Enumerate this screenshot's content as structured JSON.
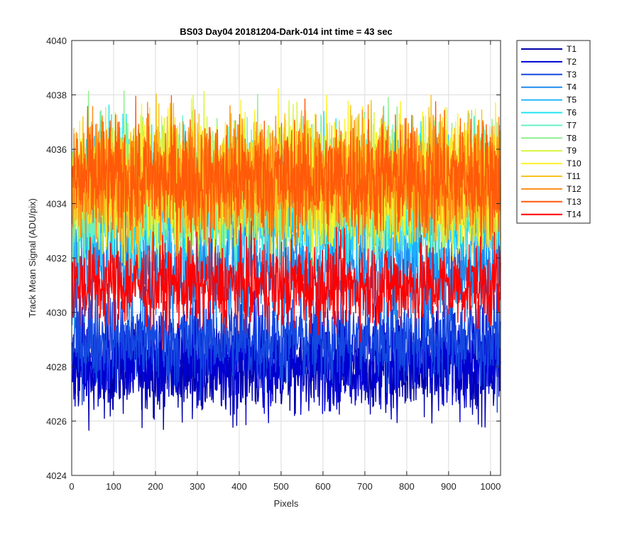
{
  "chart_data": {
    "type": "line",
    "title": "BS03 Day04 20181204-Dark-014 int time = 43 sec",
    "xlabel": "Pixels",
    "ylabel": "Track Mean Signal (ADU/pix)",
    "xlim": [
      0,
      1024
    ],
    "ylim": [
      4024,
      4040
    ],
    "xticks": [
      0,
      100,
      200,
      300,
      400,
      500,
      600,
      700,
      800,
      900,
      1000
    ],
    "yticks": [
      4024,
      4026,
      4028,
      4030,
      4032,
      4034,
      4036,
      4038,
      4040
    ],
    "grid": true,
    "legend_position": "outside-top-right",
    "x_points": 1024,
    "series": [
      {
        "name": "T1",
        "color": "#0000AA",
        "mean": 4028.0,
        "noise": 0.9
      },
      {
        "name": "T2",
        "color": "#0000D4",
        "mean": 4028.2,
        "noise": 0.9
      },
      {
        "name": "T3",
        "color": "#1448E0",
        "mean": 4029.0,
        "noise": 0.9
      },
      {
        "name": "T4",
        "color": "#1E8CF0",
        "mean": 4031.6,
        "noise": 1.0
      },
      {
        "name": "T5",
        "color": "#21B8FF",
        "mean": 4033.8,
        "noise": 1.2
      },
      {
        "name": "T6",
        "color": "#1FE4F2",
        "mean": 4034.4,
        "noise": 1.2
      },
      {
        "name": "T7",
        "color": "#66F2C8",
        "mean": 4034.4,
        "noise": 1.2
      },
      {
        "name": "T8",
        "color": "#8BF08A",
        "mean": 4034.8,
        "noise": 1.2
      },
      {
        "name": "T9",
        "color": "#D8F53A",
        "mean": 4034.6,
        "noise": 1.2
      },
      {
        "name": "T10",
        "color": "#FFF22A",
        "mean": 4035.0,
        "noise": 1.2
      },
      {
        "name": "T11",
        "color": "#F8C21E",
        "mean": 4034.8,
        "noise": 1.2
      },
      {
        "name": "T12",
        "color": "#FF8C14",
        "mean": 4035.0,
        "noise": 1.1
      },
      {
        "name": "T13",
        "color": "#FF5A0A",
        "mean": 4034.9,
        "noise": 1.1
      },
      {
        "name": "T14",
        "color": "#FF0000",
        "mean": 4031.0,
        "noise": 0.8
      }
    ]
  }
}
